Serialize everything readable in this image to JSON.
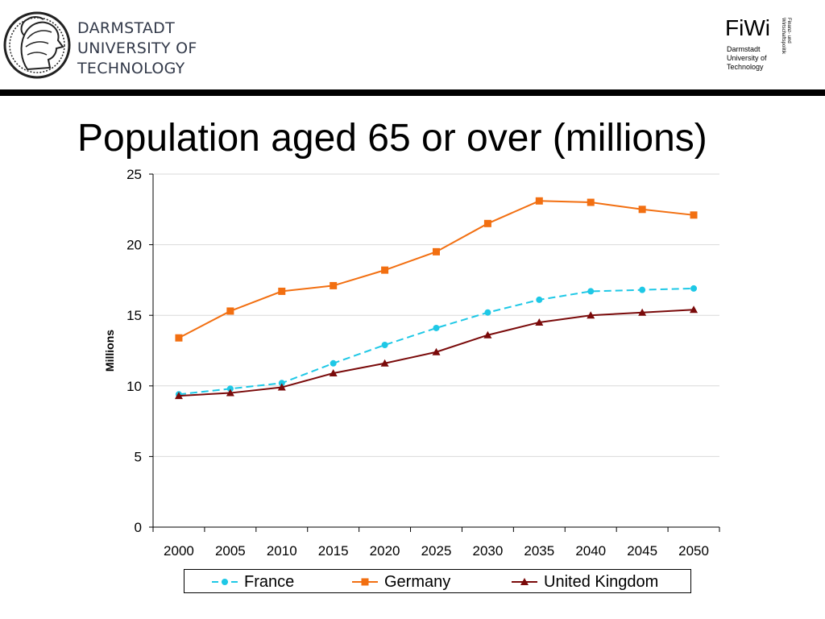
{
  "header": {
    "university_lines": [
      "DARMSTADT",
      "UNIVERSITY OF",
      "TECHNOLOGY"
    ],
    "fiwi": {
      "name": "FiWi",
      "lines": [
        "Darmstadt",
        "University of",
        "Technology"
      ],
      "vertical_lines": [
        "Finanz- und",
        "Wirtschaftspolitik"
      ]
    }
  },
  "slide": {
    "title": "Population aged 65 or over (millions)"
  },
  "colors": {
    "france": "#1ec8e6",
    "germany": "#f26f11",
    "uk": "#7a0a0a",
    "header_rule": "#000000",
    "university_text": "#333a4a"
  },
  "icons": {
    "university_logo": "athena-seal-icon",
    "france_marker": "circle-marker-icon",
    "germany_marker": "square-marker-icon",
    "uk_marker": "triangle-marker-icon"
  },
  "chart_data": {
    "type": "line",
    "title": "",
    "xlabel": "",
    "ylabel": "Millions",
    "x": [
      "2000",
      "2005",
      "2010",
      "2015",
      "2020",
      "2025",
      "2030",
      "2035",
      "2040",
      "2045",
      "2050"
    ],
    "ylim": [
      0,
      25
    ],
    "yticks": [
      0,
      5,
      10,
      15,
      20,
      25
    ],
    "grid": true,
    "legend_position": "bottom",
    "series": [
      {
        "name": "France",
        "key": "france",
        "marker": "circle",
        "dashed": true,
        "values": [
          9.4,
          9.8,
          10.2,
          11.6,
          12.9,
          14.1,
          15.2,
          16.1,
          16.7,
          16.8,
          16.9
        ]
      },
      {
        "name": "Germany",
        "key": "germany",
        "marker": "square",
        "dashed": false,
        "values": [
          13.4,
          15.3,
          16.7,
          17.1,
          18.2,
          19.5,
          21.5,
          23.1,
          23.0,
          22.5,
          22.1
        ]
      },
      {
        "name": "United Kingdom",
        "key": "uk",
        "marker": "triangle",
        "dashed": false,
        "values": [
          9.3,
          9.5,
          9.9,
          10.9,
          11.6,
          12.4,
          13.6,
          14.5,
          15.0,
          15.2,
          15.4
        ]
      }
    ]
  }
}
